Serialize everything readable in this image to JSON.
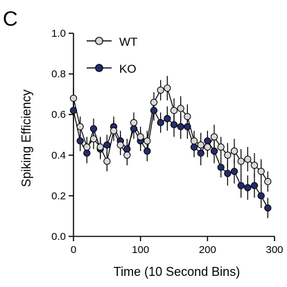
{
  "panel_label": "C",
  "colors": {
    "wt_fill": "#d9d9d9",
    "ko_fill": "#232c6f",
    "stroke": "#000000"
  },
  "chart_data": {
    "type": "line",
    "title": "",
    "xlabel": "Time  (10 Second Bins)",
    "ylabel": "Spiking Efficiency",
    "xlim": [
      0,
      300
    ],
    "ylim": [
      0,
      1.0
    ],
    "xticks": [
      0,
      100,
      200,
      300
    ],
    "xtick_labels": [
      "0",
      "100",
      "200",
      "300"
    ],
    "yticks": [
      0,
      0.2,
      0.4,
      0.6,
      0.8,
      1.0
    ],
    "ytick_labels": [
      "0.0",
      "0.2",
      "0.4",
      "0.6",
      "0.8",
      "1.0"
    ],
    "grid": false,
    "legend_position": "top-left",
    "x": [
      0,
      10,
      20,
      30,
      40,
      50,
      60,
      70,
      80,
      90,
      100,
      110,
      120,
      130,
      140,
      150,
      160,
      170,
      180,
      190,
      200,
      210,
      220,
      230,
      240,
      250,
      260,
      270,
      280,
      290
    ],
    "series": [
      {
        "name": "WT",
        "marker": "circle-open-gray",
        "values": [
          0.68,
          0.54,
          0.44,
          0.48,
          0.44,
          0.37,
          0.52,
          0.45,
          0.4,
          0.56,
          0.49,
          0.47,
          0.66,
          0.72,
          0.73,
          0.62,
          0.63,
          0.59,
          0.47,
          0.45,
          0.44,
          0.49,
          0.44,
          0.4,
          0.42,
          0.37,
          0.38,
          0.35,
          0.32,
          0.27
        ],
        "errors": [
          0.05,
          0.05,
          0.05,
          0.05,
          0.05,
          0.05,
          0.05,
          0.05,
          0.05,
          0.05,
          0.05,
          0.05,
          0.05,
          0.05,
          0.06,
          0.06,
          0.06,
          0.06,
          0.05,
          0.06,
          0.05,
          0.06,
          0.05,
          0.06,
          0.06,
          0.06,
          0.06,
          0.06,
          0.06,
          0.05
        ]
      },
      {
        "name": "KO",
        "marker": "circle-filled-navy",
        "values": [
          0.62,
          0.47,
          0.41,
          0.53,
          0.43,
          0.45,
          0.54,
          0.47,
          0.43,
          0.53,
          0.47,
          0.42,
          0.62,
          0.56,
          0.58,
          0.55,
          0.54,
          0.54,
          0.44,
          0.41,
          0.47,
          0.42,
          0.34,
          0.31,
          0.32,
          0.25,
          0.24,
          0.25,
          0.2,
          0.14
        ]
      }
    ]
  }
}
